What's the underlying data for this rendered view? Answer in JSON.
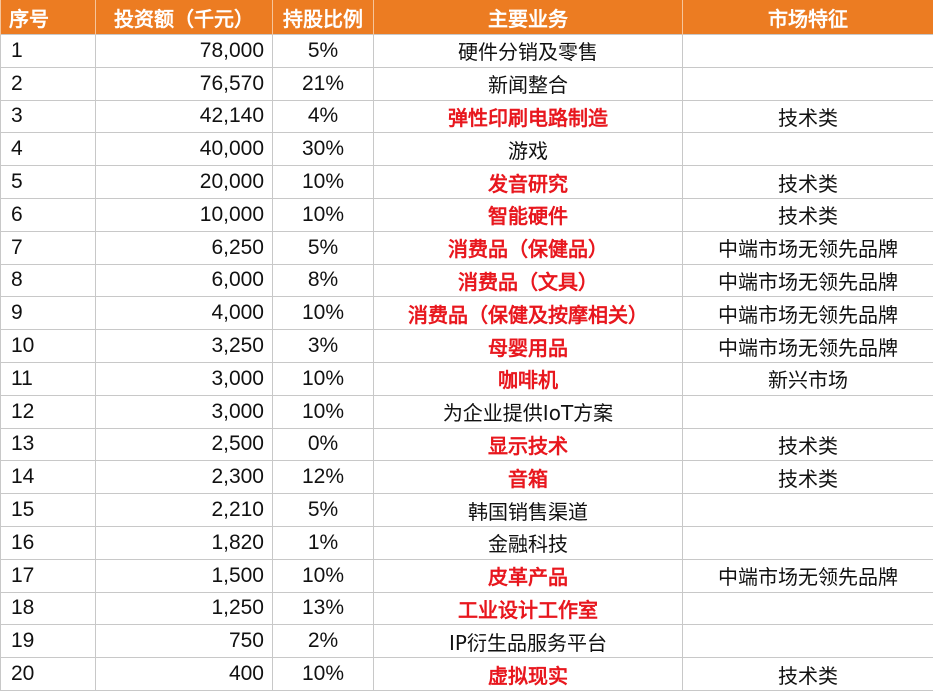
{
  "header": {
    "col_index": "序号",
    "col_amount": "投资额（千元）",
    "col_share": "持股比例",
    "col_business": "主要业务",
    "col_market": "市场特征"
  },
  "rows": [
    {
      "index": "1",
      "amount": "78,000",
      "share": "5%",
      "business": "硬件分销及零售",
      "highlight": false,
      "market": ""
    },
    {
      "index": "2",
      "amount": "76,570",
      "share": "21%",
      "business": "新闻整合",
      "highlight": false,
      "market": ""
    },
    {
      "index": "3",
      "amount": "42,140",
      "share": "4%",
      "business": "弹性印刷电路制造",
      "highlight": true,
      "market": "技术类"
    },
    {
      "index": "4",
      "amount": "40,000",
      "share": "30%",
      "business": "游戏",
      "highlight": false,
      "market": ""
    },
    {
      "index": "5",
      "amount": "20,000",
      "share": "10%",
      "business": "发音研究",
      "highlight": true,
      "market": "技术类"
    },
    {
      "index": "6",
      "amount": "10,000",
      "share": "10%",
      "business": "智能硬件",
      "highlight": true,
      "market": "技术类"
    },
    {
      "index": "7",
      "amount": "6,250",
      "share": "5%",
      "business": "消费品（保健品）",
      "highlight": true,
      "market": "中端市场无领先品牌"
    },
    {
      "index": "8",
      "amount": "6,000",
      "share": "8%",
      "business": "消费品（文具）",
      "highlight": true,
      "market": "中端市场无领先品牌"
    },
    {
      "index": "9",
      "amount": "4,000",
      "share": "10%",
      "business": "消费品（保健及按摩相关）",
      "highlight": true,
      "market": "中端市场无领先品牌"
    },
    {
      "index": "10",
      "amount": "3,250",
      "share": "3%",
      "business": "母婴用品",
      "highlight": true,
      "market": "中端市场无领先品牌"
    },
    {
      "index": "11",
      "amount": "3,000",
      "share": "10%",
      "business": "咖啡机",
      "highlight": true,
      "market": "新兴市场"
    },
    {
      "index": "12",
      "amount": "3,000",
      "share": "10%",
      "business": "为企业提供IoT方案",
      "highlight": false,
      "market": ""
    },
    {
      "index": "13",
      "amount": "2,500",
      "share": "0%",
      "business": "显示技术",
      "highlight": true,
      "market": "技术类"
    },
    {
      "index": "14",
      "amount": "2,300",
      "share": "12%",
      "business": "音箱",
      "highlight": true,
      "market": "技术类"
    },
    {
      "index": "15",
      "amount": "2,210",
      "share": "5%",
      "business": "韩国销售渠道",
      "highlight": false,
      "market": ""
    },
    {
      "index": "16",
      "amount": "1,820",
      "share": "1%",
      "business": "金融科技",
      "highlight": false,
      "market": ""
    },
    {
      "index": "17",
      "amount": "1,500",
      "share": "10%",
      "business": "皮革产品",
      "highlight": true,
      "market": "中端市场无领先品牌"
    },
    {
      "index": "18",
      "amount": "1,250",
      "share": "13%",
      "business": "工业设计工作室",
      "highlight": true,
      "market": ""
    },
    {
      "index": "19",
      "amount": "750",
      "share": "2%",
      "business": "IP衍生品服务平台",
      "highlight": false,
      "market": ""
    },
    {
      "index": "20",
      "amount": "400",
      "share": "10%",
      "business": "虚拟现实",
      "highlight": true,
      "market": "技术类"
    }
  ],
  "colors": {
    "header_bg": "#EC7C22",
    "highlight_text": "#E8171E"
  }
}
